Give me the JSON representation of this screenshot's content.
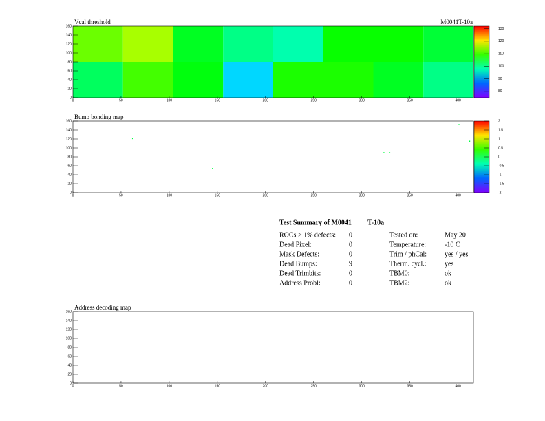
{
  "chart_data": [
    {
      "type": "heatmap",
      "title": "Vcal threshold",
      "label": "M0041T-10a",
      "xbins": [
        0,
        52,
        104,
        156,
        208,
        260,
        312,
        364,
        416
      ],
      "ybins": [
        0,
        80,
        160
      ],
      "values": [
        [
          102,
          110,
          106,
          92,
          108,
          108,
          105,
          100
        ],
        [
          112,
          115,
          105,
          100,
          98,
          107,
          107,
          104
        ]
      ],
      "xlim": [
        0,
        416
      ],
      "ylim": [
        0,
        160
      ],
      "xticks": [
        0,
        50,
        100,
        150,
        200,
        250,
        300,
        350,
        400
      ],
      "yticks": [
        0,
        20,
        40,
        60,
        80,
        100,
        120,
        140,
        160
      ],
      "zlim": [
        75,
        132
      ],
      "zticks": [
        80,
        90,
        100,
        110,
        120,
        130
      ]
    },
    {
      "type": "scatter",
      "title": "Bump bonding map",
      "x": [
        62,
        145,
        323,
        329,
        401,
        412
      ],
      "y": [
        121,
        54,
        89,
        89,
        152,
        115
      ],
      "values": [
        0,
        0,
        0,
        0,
        0,
        0
      ],
      "xlim": [
        0,
        416
      ],
      "ylim": [
        0,
        160
      ],
      "xticks": [
        0,
        50,
        100,
        150,
        200,
        250,
        300,
        350,
        400
      ],
      "yticks": [
        0,
        20,
        40,
        60,
        80,
        100,
        120,
        140,
        160
      ],
      "zlim": [
        -2,
        2
      ],
      "zticks": [
        -2,
        -1.5,
        -1,
        -0.5,
        0,
        0.5,
        1,
        1.5,
        2
      ]
    },
    {
      "type": "scatter",
      "title": "Address decoding map",
      "x": [],
      "y": [],
      "values": [],
      "xlim": [
        0,
        416
      ],
      "ylim": [
        0,
        160
      ],
      "xticks": [
        0,
        50,
        100,
        150,
        200,
        250,
        300,
        350,
        400
      ],
      "yticks": [
        0,
        20,
        40,
        60,
        80,
        100,
        120,
        140,
        160
      ]
    }
  ],
  "summary": {
    "title": "Test Summary of M0041",
    "subtitle": "T-10a",
    "left": [
      [
        "ROCs > 1% defects:",
        "0"
      ],
      [
        "Dead Pixel:",
        "0"
      ],
      [
        "Mask Defects:",
        "0"
      ],
      [
        "Dead Bumps:",
        "9"
      ],
      [
        "Dead Trimbits:",
        "0"
      ],
      [
        "Address Probl:",
        "0"
      ]
    ],
    "right": [
      [
        "Tested on:",
        "May 20"
      ],
      [
        "Temperature:",
        "-10 C"
      ],
      [
        "Trim / phCal:",
        "yes / yes"
      ],
      [
        "Therm. cycl.:",
        "yes"
      ],
      [
        "TBM0:",
        "ok"
      ],
      [
        "TBM2:",
        "ok"
      ]
    ]
  }
}
